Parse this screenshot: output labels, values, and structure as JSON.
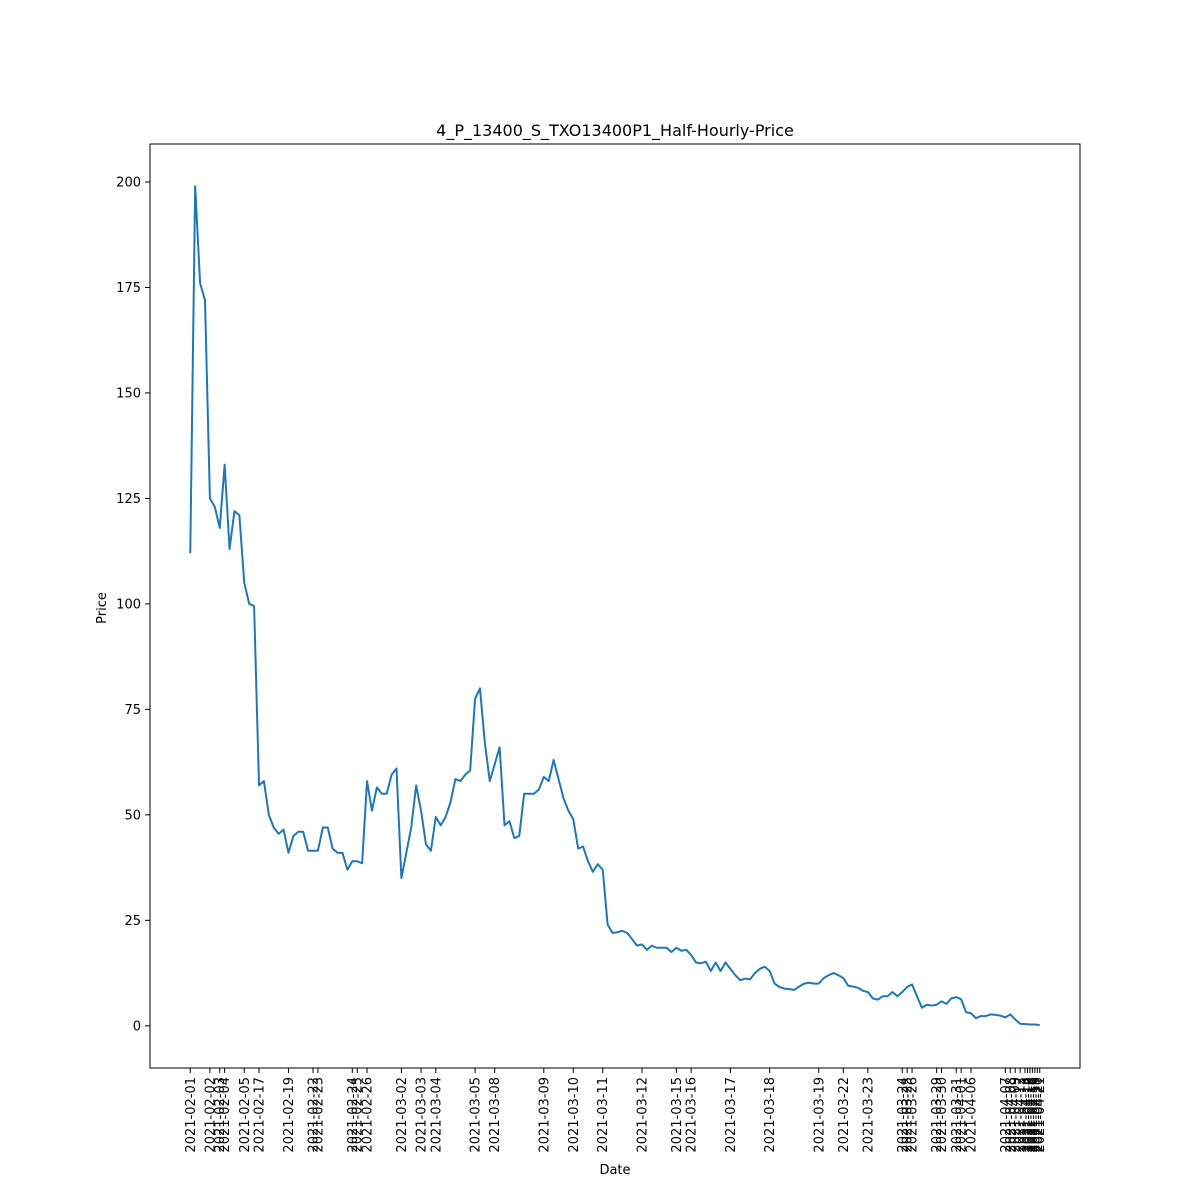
{
  "chart_data": {
    "type": "line",
    "title": "4_P_13400_S_TXO13400P1_Half-Hourly-Price",
    "xlabel": "Date",
    "ylabel": "Price",
    "ylim": [
      -10,
      209
    ],
    "yticks": [
      0,
      25,
      50,
      75,
      100,
      125,
      150,
      175,
      200
    ],
    "grid": false,
    "line_color": "#1f77b4",
    "xticks": [
      {
        "label": "2021-02-01",
        "i": 0
      },
      {
        "label": "2021-02-02",
        "i": 4
      },
      {
        "label": "2021-02-03",
        "i": 6
      },
      {
        "label": "2021-02-04",
        "i": 7
      },
      {
        "label": "2021-02-05",
        "i": 11
      },
      {
        "label": "2021-02-17",
        "i": 14
      },
      {
        "label": "2021-02-19",
        "i": 20
      },
      {
        "label": "2021-02-22",
        "i": 25
      },
      {
        "label": "2021-02-23",
        "i": 26
      },
      {
        "label": "2021-02-24",
        "i": 33
      },
      {
        "label": "2021-02-25",
        "i": 34
      },
      {
        "label": "2021-02-26",
        "i": 36
      },
      {
        "label": "2021-03-02",
        "i": 43
      },
      {
        "label": "2021-03-03",
        "i": 47
      },
      {
        "label": "2021-03-04",
        "i": 50
      },
      {
        "label": "2021-03-05",
        "i": 58
      },
      {
        "label": "2021-03-08",
        "i": 62
      },
      {
        "label": "2021-03-09",
        "i": 72
      },
      {
        "label": "2021-03-10",
        "i": 78
      },
      {
        "label": "2021-03-11",
        "i": 84
      },
      {
        "label": "2021-03-12",
        "i": 92
      },
      {
        "label": "2021-03-15",
        "i": 99
      },
      {
        "label": "2021-03-16",
        "i": 102
      },
      {
        "label": "2021-03-17",
        "i": 110
      },
      {
        "label": "2021-03-18",
        "i": 118
      },
      {
        "label": "2021-03-19",
        "i": 128
      },
      {
        "label": "2021-03-22",
        "i": 133
      },
      {
        "label": "2021-03-23",
        "i": 138
      },
      {
        "label": "2021-03-24",
        "i": 145
      },
      {
        "label": "2021-03-25",
        "i": 146
      },
      {
        "label": "2021-03-26",
        "i": 147
      },
      {
        "label": "2021-03-29",
        "i": 152
      },
      {
        "label": "2021-03-30",
        "i": 153
      },
      {
        "label": "2021-03-31",
        "i": 156
      },
      {
        "label": "2021-04-01",
        "i": 157
      },
      {
        "label": "2021-04-06",
        "i": 159
      },
      {
        "label": "2021-04-07",
        "i": 166
      },
      {
        "label": "2021-04-08",
        "i": 167
      },
      {
        "label": "2021-04-09",
        "i": 168
      },
      {
        "label": "2021-04-12",
        "i": 169
      },
      {
        "label": "2021-04-13",
        "i": 170
      },
      {
        "label": "2021-04-14",
        "i": 170.5
      },
      {
        "label": "2021-04-15",
        "i": 171
      },
      {
        "label": "2021-04-16",
        "i": 171.5
      },
      {
        "label": "2021-04-19",
        "i": 172
      },
      {
        "label": "2021-04-20",
        "i": 172.5
      },
      {
        "label": "2021-04-21",
        "i": 173
      }
    ],
    "x": [
      0,
      1,
      2,
      3,
      4,
      5,
      6,
      7,
      8,
      9,
      10,
      11,
      12,
      13,
      14,
      15,
      16,
      17,
      18,
      19,
      20,
      21,
      22,
      23,
      24,
      25,
      26,
      27,
      28,
      29,
      30,
      31,
      32,
      33,
      34,
      35,
      36,
      37,
      38,
      39,
      40,
      41,
      42,
      43,
      44,
      45,
      46,
      47,
      48,
      49,
      50,
      51,
      52,
      53,
      54,
      55,
      56,
      57,
      58,
      59,
      60,
      61,
      62,
      63,
      64,
      65,
      66,
      67,
      68,
      69,
      70,
      71,
      72,
      73,
      74,
      75,
      76,
      77,
      78,
      79,
      80,
      81,
      82,
      83,
      84,
      85,
      86,
      87,
      88,
      89,
      90,
      91,
      92,
      93,
      94,
      95,
      96,
      97,
      98,
      99,
      100,
      101,
      102,
      103,
      104,
      105,
      106,
      107,
      108,
      109,
      110,
      111,
      112,
      113,
      114,
      115,
      116,
      117,
      118,
      119,
      120,
      121,
      122,
      123,
      124,
      125,
      126,
      127,
      128,
      129,
      130,
      131,
      132,
      133,
      134,
      135,
      136,
      137,
      138,
      139,
      140,
      141,
      142,
      143,
      144,
      145,
      146,
      147,
      148,
      149,
      150,
      151,
      152,
      153,
      154,
      155,
      156,
      157,
      158,
      159,
      160,
      161,
      162,
      163,
      164,
      165,
      166,
      167,
      168,
      169,
      170,
      171,
      172,
      173
    ],
    "y": [
      112,
      199,
      176,
      172,
      125,
      123,
      118,
      133,
      113,
      122,
      121,
      105,
      100,
      99.5,
      57,
      58,
      50,
      47,
      45.5,
      46.5,
      41,
      45,
      46,
      46,
      41.5,
      41.5,
      41.5,
      47,
      47,
      42,
      41,
      41,
      37,
      39,
      39,
      38.5,
      58,
      51,
      56.5,
      55,
      55,
      59.5,
      61,
      35,
      41,
      47,
      57,
      51,
      43,
      41.5,
      49.5,
      47.5,
      49.5,
      53,
      58.5,
      58,
      59.5,
      60.5,
      77.5,
      80,
      67,
      58,
      62,
      66,
      47.5,
      48.5,
      44.5,
      45,
      55,
      55,
      55,
      56,
      59,
      58,
      63,
      58.5,
      54,
      51,
      49,
      42,
      42.5,
      39,
      36.5,
      38.3,
      37,
      24,
      22,
      22.2,
      22.5,
      22,
      20.5,
      19,
      19.3,
      18,
      19,
      18.5,
      18.5,
      18.5,
      17.5,
      18.5,
      17.8,
      18,
      16.8,
      15,
      14.8,
      15.2,
      13,
      15,
      13,
      15,
      13.5,
      12,
      10.8,
      11.2,
      11,
      12.5,
      13.5,
      14,
      13,
      10,
      9.2,
      8.8,
      8.7,
      8.5,
      9.3,
      10,
      10.2,
      10,
      10,
      11.3,
      12,
      12.5,
      12,
      11.3,
      9.5,
      9.3,
      9,
      8.3,
      8,
      6.5,
      6.2,
      7,
      7,
      8,
      7,
      8,
      9.2,
      9.8,
      7,
      4.3,
      5,
      4.8,
      5,
      5.8,
      5.2,
      6.5,
      6.8,
      6.3,
      3.2,
      3,
      1.8,
      2.3,
      2.3,
      2.7,
      2.6,
      2.4,
      2,
      2.7,
      1.5,
      0.5,
      0.4,
      0.3,
      0.3,
      0.2
    ]
  }
}
